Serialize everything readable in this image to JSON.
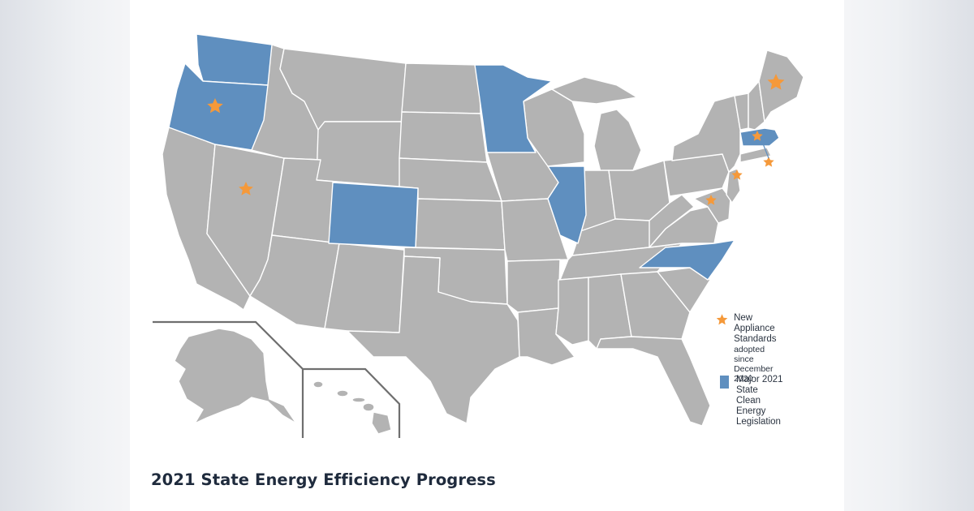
{
  "map": {
    "title": "2021 State Energy Efficiency Progress",
    "colors": {
      "default_state": "#b3b3b3",
      "legislation": "#5f8fbf",
      "standards_star": "#f5993a"
    },
    "legislation_states": [
      "Washington",
      "Oregon",
      "Minnesota",
      "Colorado",
      "Illinois",
      "North Carolina",
      "Massachusetts"
    ],
    "standards_states": [
      "Oregon",
      "Nevada",
      "Maine",
      "Massachusetts",
      "Rhode Island",
      "New Jersey",
      "Maryland"
    ]
  },
  "legend": {
    "standards": {
      "label_line1": "New Appliance",
      "label_line2": "Standards",
      "label_line3": "adopted since",
      "label_line4": "December 2020",
      "icon": "star-icon"
    },
    "legislation": {
      "label_line1": "Major 2021 State",
      "label_line2": "Clean Energy",
      "label_line3": "Legislation",
      "icon": "square-swatch"
    }
  }
}
